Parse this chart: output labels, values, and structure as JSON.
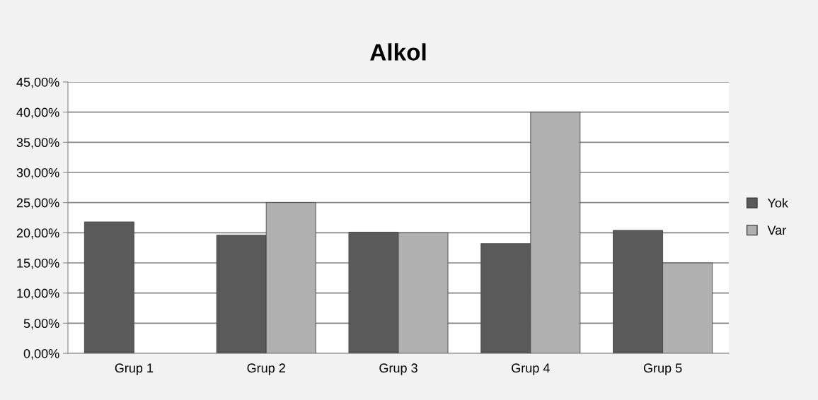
{
  "chart_data": {
    "type": "bar",
    "title": "Alkol",
    "categories": [
      "Grup 1",
      "Grup 2",
      "Grup 3",
      "Grup 4",
      "Grup 5"
    ],
    "series": [
      {
        "name": "Yok",
        "color": "#5a5a5a",
        "values": [
          21.8,
          19.6,
          20.1,
          18.2,
          20.4
        ]
      },
      {
        "name": "Var",
        "color": "#b0b0b0",
        "values": [
          null,
          25,
          20,
          40,
          15
        ]
      }
    ],
    "ylim": [
      0,
      45
    ],
    "yticks": [
      {
        "value": 0,
        "label": "0,00%"
      },
      {
        "value": 5,
        "label": "5,00%"
      },
      {
        "value": 10,
        "label": "10,00%"
      },
      {
        "value": 15,
        "label": "15,00%"
      },
      {
        "value": 20,
        "label": "20,00%"
      },
      {
        "value": 25,
        "label": "25,00%"
      },
      {
        "value": 30,
        "label": "30,00%"
      },
      {
        "value": 35,
        "label": "35,00%"
      },
      {
        "value": 40,
        "label": "40,00%"
      },
      {
        "value": 45,
        "label": "45,00%"
      }
    ],
    "grid": "y",
    "legend": "right"
  }
}
